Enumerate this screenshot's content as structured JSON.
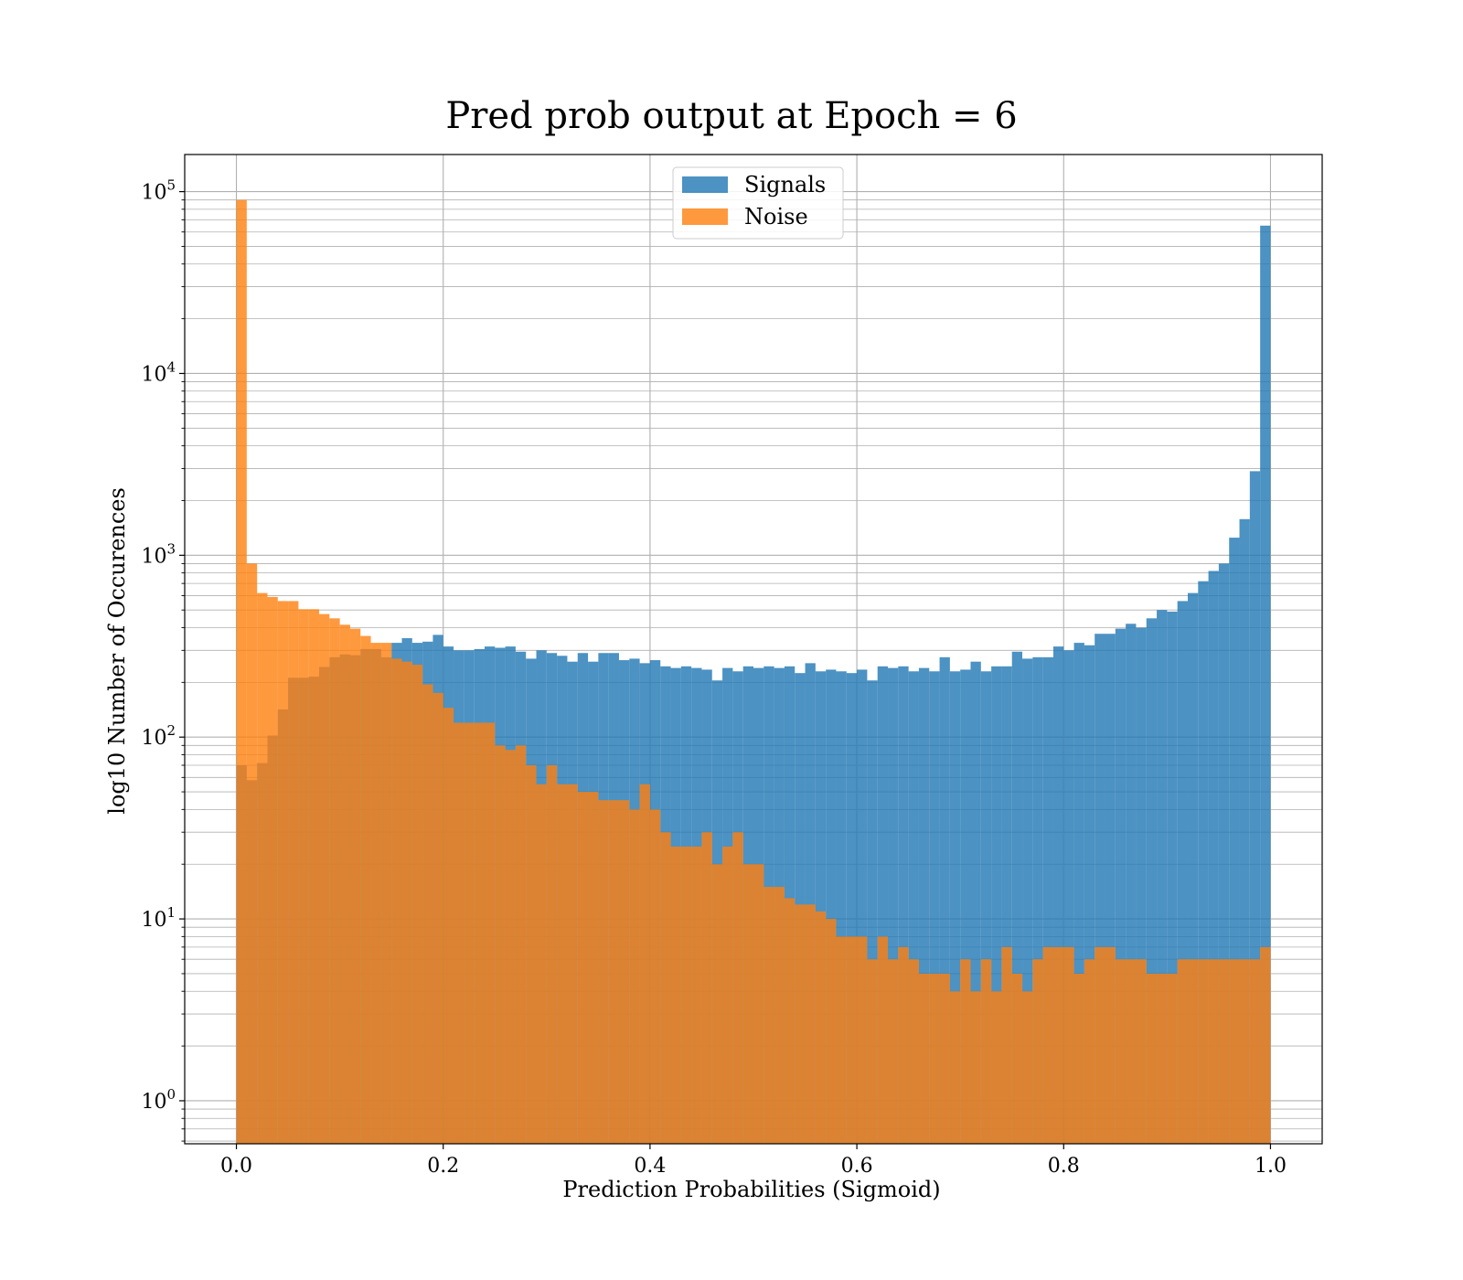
{
  "chart_data": {
    "type": "bar",
    "title": "Pred prob output at Epoch = 6",
    "xlabel": "Prediction Probabilities (Sigmoid)",
    "ylabel": "log10 Number of Occurences",
    "xlim": [
      -0.05,
      1.05
    ],
    "ylim": [
      0.58,
      160000
    ],
    "yscale": "log",
    "grid": true,
    "legend_position": "upper center",
    "bins": 100,
    "bin_range": [
      0,
      1
    ],
    "xticks": [
      "0.0",
      "0.2",
      "0.4",
      "0.6",
      "0.8",
      "1.0"
    ],
    "xtick_values": [
      0,
      0.2,
      0.4,
      0.6,
      0.8,
      1.0
    ],
    "ytick_values": [
      1,
      10,
      100,
      1000,
      10000,
      100000
    ],
    "ytick_base": "10",
    "ytick_exponents": [
      "0",
      "1",
      "2",
      "3",
      "4",
      "5"
    ],
    "series": [
      {
        "name": "Signals",
        "color": "#1f77b4",
        "values": [
          70,
          58,
          72,
          102,
          142,
          212,
          212,
          215,
          243,
          275,
          285,
          282,
          305,
          305,
          275,
          330,
          350,
          330,
          335,
          365,
          315,
          300,
          300,
          305,
          315,
          310,
          315,
          295,
          270,
          300,
          290,
          280,
          260,
          290,
          260,
          290,
          290,
          265,
          270,
          255,
          265,
          245,
          240,
          245,
          240,
          235,
          205,
          240,
          230,
          245,
          240,
          245,
          240,
          245,
          225,
          255,
          230,
          235,
          230,
          225,
          235,
          205,
          245,
          240,
          245,
          230,
          240,
          230,
          275,
          230,
          235,
          260,
          230,
          245,
          245,
          295,
          270,
          275,
          275,
          315,
          300,
          330,
          320,
          370,
          370,
          395,
          420,
          400,
          450,
          500,
          490,
          560,
          620,
          720,
          820,
          900,
          1250,
          1580,
          2900,
          65000
        ]
      },
      {
        "name": "Noise",
        "color": "#ff7f0e",
        "values": [
          90000,
          900,
          620,
          590,
          560,
          560,
          505,
          505,
          475,
          450,
          415,
          395,
          360,
          330,
          330,
          270,
          260,
          250,
          195,
          175,
          145,
          120,
          120,
          120,
          120,
          90,
          85,
          90,
          70,
          55,
          70,
          55,
          55,
          50,
          50,
          45,
          45,
          45,
          40,
          55,
          40,
          30,
          25,
          25,
          25,
          30,
          20,
          25,
          30,
          20,
          20,
          15,
          15,
          13,
          12,
          12,
          11,
          10,
          8,
          8,
          8,
          6,
          8,
          6,
          7,
          6,
          5,
          5,
          5,
          4,
          6,
          4,
          6,
          4,
          7,
          5,
          4,
          6,
          7,
          7,
          7,
          5,
          6,
          7,
          7,
          6,
          6,
          6,
          5,
          5,
          5,
          6,
          6,
          6,
          6,
          6,
          6,
          6,
          6,
          7
        ]
      }
    ]
  }
}
